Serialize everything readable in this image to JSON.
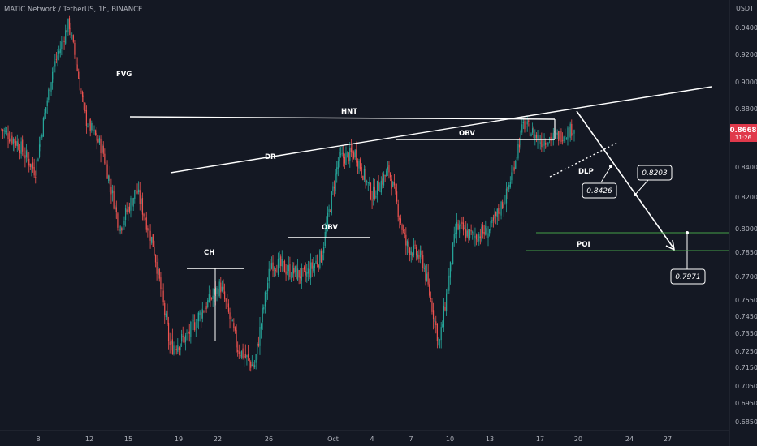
{
  "header": {
    "symbol_title": "MATIC Network / TetherUS, 1h, BINANCE"
  },
  "colors": {
    "background": "#141823",
    "up_candle": "#26a69a",
    "down_candle": "#ef5350",
    "price_badge": "#e0394b",
    "drawing_line": "#ffffff",
    "poi_line": "#43a047",
    "axis_text": "#b2b5be"
  },
  "chart_data": {
    "type": "candlestick",
    "title": "MATIC Network / TetherUS, 1h, BINANCE",
    "y_unit": "USDT",
    "ylim": [
      0.683,
      0.955
    ],
    "y_ticks": [
      "0.9400",
      "0.9200",
      "0.9000",
      "0.8800",
      "0.8600",
      "0.8400",
      "0.8200",
      "0.8000",
      "0.7850",
      "0.7700",
      "0.7550",
      "0.7450",
      "0.7350",
      "0.7250",
      "0.7150",
      "0.7050",
      "0.6950",
      "0.6850"
    ],
    "x_ticks": [
      "8",
      "12",
      "15",
      "19",
      "22",
      "26",
      "Oct",
      "4",
      "7",
      "10",
      "13",
      "17",
      "20",
      "24",
      "27"
    ],
    "current_price": {
      "price": "0.8668",
      "countdown": "11:26"
    },
    "price_path": [
      [
        0.88,
        0.865
      ],
      [
        0.79,
        0.855
      ],
      [
        0.86,
        0.837
      ],
      [
        0.872,
        0.907
      ],
      [
        0.934,
        0.944
      ],
      [
        0.89,
        0.872
      ],
      [
        0.843,
        0.851
      ],
      [
        0.832,
        0.8
      ],
      [
        0.838,
        0.825
      ],
      [
        0.775,
        0.79
      ],
      [
        0.761,
        0.727
      ],
      [
        0.765,
        0.733
      ],
      [
        0.695,
        0.75
      ],
      [
        0.774,
        0.764
      ],
      [
        0.744,
        0.727
      ],
      [
        0.76,
        0.715
      ],
      [
        0.772,
        0.779
      ],
      [
        0.765,
        0.774
      ],
      [
        0.761,
        0.77
      ],
      [
        0.775,
        0.783
      ],
      [
        0.805,
        0.845
      ],
      [
        0.857,
        0.849
      ],
      [
        0.839,
        0.821
      ],
      [
        0.828,
        0.838
      ],
      [
        0.808,
        0.79
      ],
      [
        0.798,
        0.78
      ],
      [
        0.775,
        0.728
      ],
      [
        0.785,
        0.801
      ],
      [
        0.805,
        0.795
      ],
      [
        0.785,
        0.799
      ],
      [
        0.812,
        0.822
      ],
      [
        0.835,
        0.869
      ],
      [
        0.848,
        0.857
      ],
      [
        0.838,
        0.86
      ],
      [
        0.843,
        0.866
      ]
    ],
    "annotations": [
      "FVG",
      "HNT",
      "DR",
      "OBV",
      "CH",
      "OBV",
      "DLP",
      "POI"
    ],
    "callouts": [
      "0.8203",
      "0.8426",
      "0.7971"
    ]
  }
}
